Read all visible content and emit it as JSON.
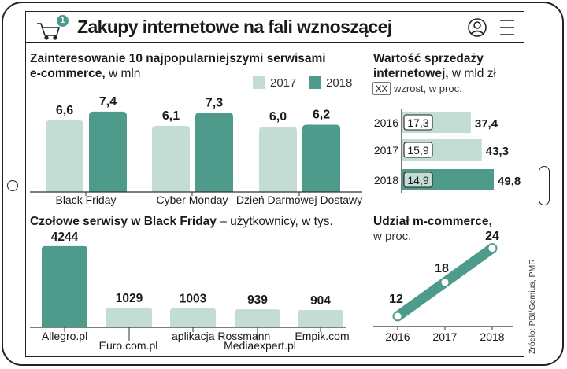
{
  "page": {
    "title": "Zakupy internetowe na fali wznoszącej",
    "badge_count": "1",
    "source": "Źródło: PBI/Gemius, PMR",
    "icons": [
      "cart-icon",
      "user-icon",
      "menu-icon"
    ],
    "colors": {
      "light": "#c3ddd5",
      "dark": "#4e9a8b",
      "accent": "#2e7d6e"
    }
  },
  "chart_data": [
    {
      "type": "bar",
      "title": "Zainteresowanie 10 najpopularniejszymi serwisami e-commerce,",
      "unit": "w mln",
      "categories": [
        "Black Friday",
        "Cyber Monday",
        "Dzień Darmowej Dostawy"
      ],
      "series": [
        {
          "name": "2017",
          "values": [
            6.6,
            6.1,
            6.0
          ],
          "labels": [
            "6,6",
            "6,1",
            "6,0"
          ],
          "color": "#c3ddd5"
        },
        {
          "name": "2018",
          "values": [
            7.4,
            7.3,
            6.2
          ],
          "labels": [
            "7,4",
            "7,3",
            "6,2"
          ],
          "color": "#4e9a8b"
        }
      ],
      "legend": "top-right"
    },
    {
      "type": "bar",
      "orientation": "horizontal",
      "title": "Wartość sprzedaży internetowej,",
      "unit": "w mld zł",
      "note_label": "XX",
      "note_text": "wzrost, w proc.",
      "categories": [
        "2016",
        "2017",
        "2018"
      ],
      "values": [
        37.4,
        43.3,
        49.8
      ],
      "labels": [
        "37,4",
        "43,3",
        "49,8"
      ],
      "growth": [
        "17,3",
        "15,9",
        "14,9"
      ]
    },
    {
      "type": "bar",
      "title": "Czołowe serwisy w Black Friday",
      "unit": "– użytkownicy, w tys.",
      "categories": [
        "Allegro.pl",
        "Euro.com.pl",
        "aplikacja Rossmann",
        "Mediaexpert.pl",
        "Empik.com"
      ],
      "values": [
        4244,
        1029,
        1003,
        939,
        904
      ],
      "labels": [
        "4244",
        "1029",
        "1003",
        "939",
        "904"
      ]
    },
    {
      "type": "line",
      "title": "Udział m-commerce,",
      "unit": "w proc.",
      "x": [
        "2016",
        "2017",
        "2018"
      ],
      "y": [
        12,
        18,
        24
      ],
      "labels": [
        "12",
        "18",
        "24"
      ]
    }
  ]
}
